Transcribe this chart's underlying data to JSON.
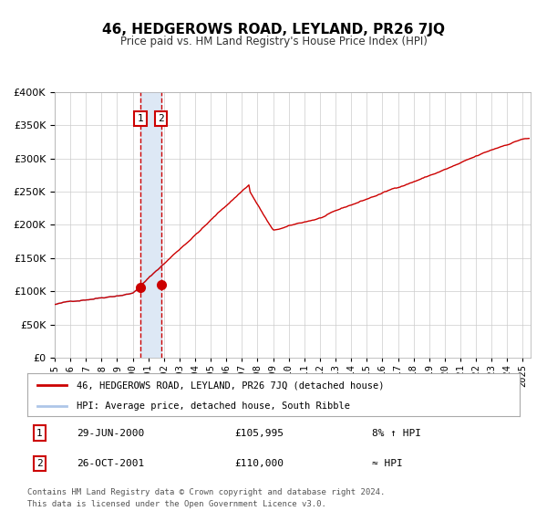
{
  "title": "46, HEDGEROWS ROAD, LEYLAND, PR26 7JQ",
  "subtitle": "Price paid vs. HM Land Registry's House Price Index (HPI)",
  "hpi_legend": "HPI: Average price, detached house, South Ribble",
  "price_legend": "46, HEDGEROWS ROAD, LEYLAND, PR26 7JQ (detached house)",
  "sale1": {
    "date": "29-JUN-2000",
    "price": 105995,
    "note": "8% ↑ HPI"
  },
  "sale2": {
    "date": "26-OCT-2001",
    "price": 110000,
    "note": "≈ HPI"
  },
  "footnote1": "Contains HM Land Registry data © Crown copyright and database right 2024.",
  "footnote2": "This data is licensed under the Open Government Licence v3.0.",
  "ylim": [
    0,
    400000
  ],
  "yticks": [
    0,
    50000,
    100000,
    150000,
    200000,
    250000,
    300000,
    350000,
    400000
  ],
  "xlim_start": 1995.0,
  "xlim_end": 2025.5,
  "bg_color": "#ffffff",
  "grid_color": "#cccccc",
  "hpi_line_color": "#aec6e8",
  "price_line_color": "#cc0000",
  "sale_marker_color": "#cc0000",
  "vline_color": "#cc0000",
  "vshade_color": "#dde8f5",
  "sale1_x": 2000.49,
  "sale2_x": 2001.82,
  "n_points": 365
}
